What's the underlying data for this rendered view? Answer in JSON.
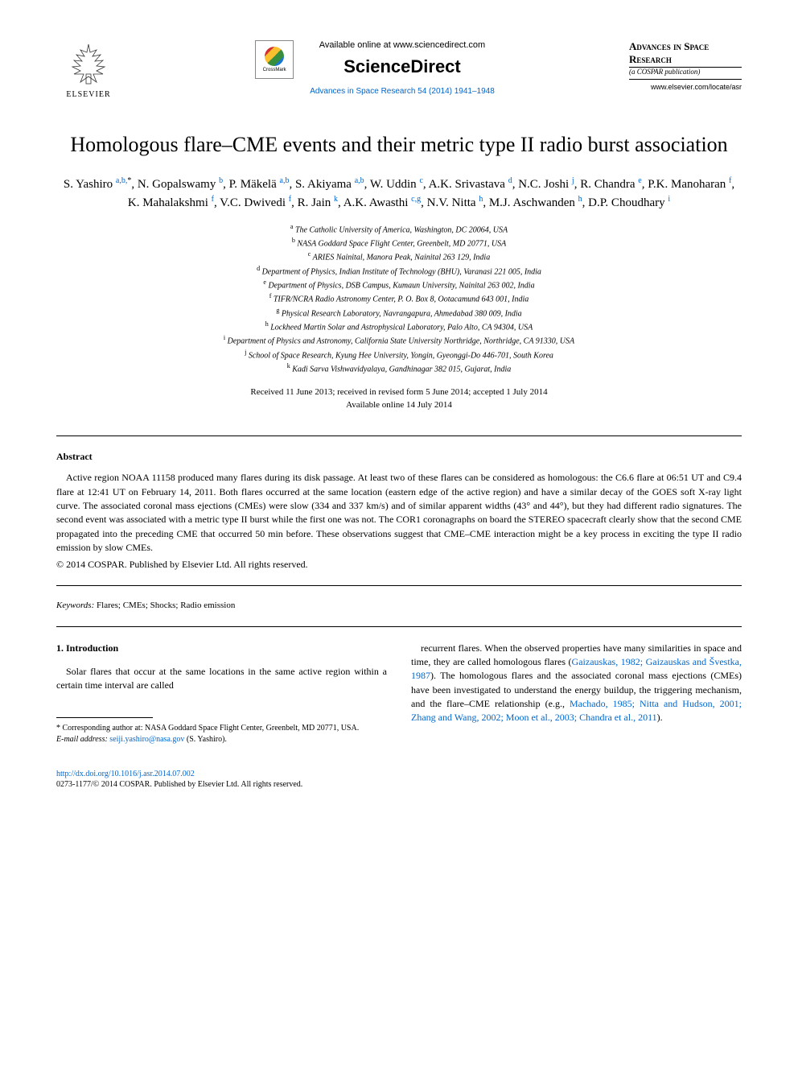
{
  "header": {
    "elsevier_label": "ELSEVIER",
    "crossmark_label": "CrossMark",
    "available_text": "Available online at www.sciencedirect.com",
    "sciencedirect": "ScienceDirect",
    "journal_ref": "Advances in Space Research 54 (2014) 1941–1948",
    "journal_title": "Advances in Space Research",
    "journal_sub": "(a COSPAR publication)",
    "journal_url": "www.elsevier.com/locate/asr"
  },
  "title": "Homologous flare–CME events and their metric type II radio burst association",
  "authors_html": "S. Yashiro <sup>a,b,</sup><sup class='ast'>*</sup>, N. Gopalswamy <sup>b</sup>, P. Mäkelä <sup>a,b</sup>, S. Akiyama <sup>a,b</sup>, W. Uddin <sup>c</sup>, A.K. Srivastava <sup>d</sup>, N.C. Joshi <sup>j</sup>, R. Chandra <sup>e</sup>, P.K. Manoharan <sup>f</sup>, K. Mahalakshmi <sup>f</sup>, V.C. Dwivedi <sup>f</sup>, R. Jain <sup>k</sup>, A.K. Awasthi <sup>c,g</sup>, N.V. Nitta <sup>h</sup>, M.J. Aschwanden <sup>h</sup>, D.P. Choudhary <sup>i</sup>",
  "affiliations": [
    {
      "sup": "a",
      "text": "The Catholic University of America, Washington, DC 20064, USA"
    },
    {
      "sup": "b",
      "text": "NASA Goddard Space Flight Center, Greenbelt, MD 20771, USA"
    },
    {
      "sup": "c",
      "text": "ARIES Nainital, Manora Peak, Nainital 263 129, India"
    },
    {
      "sup": "d",
      "text": "Department of Physics, Indian Institute of Technology (BHU), Varanasi 221 005, India"
    },
    {
      "sup": "e",
      "text": "Department of Physics, DSB Campus, Kumaun University, Nainital 263 002, India"
    },
    {
      "sup": "f",
      "text": "TIFR/NCRA Radio Astronomy Center, P. O. Box 8, Ootacamund 643 001, India"
    },
    {
      "sup": "g",
      "text": "Physical Research Laboratory, Navrangapura, Ahmedabad 380 009, India"
    },
    {
      "sup": "h",
      "text": "Lockheed Martin Solar and Astrophysical Laboratory, Palo Alto, CA 94304, USA"
    },
    {
      "sup": "i",
      "text": "Department of Physics and Astronomy, California State University Northridge, Northridge, CA 91330, USA"
    },
    {
      "sup": "j",
      "text": "School of Space Research, Kyung Hee University, Yongin, Gyeonggi-Do 446-701, South Korea"
    },
    {
      "sup": "k",
      "text": "Kadi Sarva Vishwavidyalaya, Gandhinagar 382 015, Gujarat, India"
    }
  ],
  "dates": {
    "received": "Received 11 June 2013; received in revised form 5 June 2014; accepted 1 July 2014",
    "online": "Available online 14 July 2014"
  },
  "abstract": {
    "heading": "Abstract",
    "text": "Active region NOAA 11158 produced many flares during its disk passage. At least two of these flares can be considered as homologous: the C6.6 flare at 06:51 UT and C9.4 flare at 12:41 UT on February 14, 2011. Both flares occurred at the same location (eastern edge of the active region) and have a similar decay of the GOES soft X-ray light curve. The associated coronal mass ejections (CMEs) were slow (334 and 337 km/s) and of similar apparent widths (43° and 44°), but they had different radio signatures. The second event was associated with a metric type II burst while the first one was not. The COR1 coronagraphs on board the STEREO spacecraft clearly show that the second CME propagated into the preceding CME that occurred 50 min before. These observations suggest that CME–CME interaction might be a key process in exciting the type II radio emission by slow CMEs.",
    "copyright": "© 2014 COSPAR. Published by Elsevier Ltd. All rights reserved."
  },
  "keywords": {
    "label": "Keywords:",
    "text": " Flares; CMEs; Shocks; Radio emission"
  },
  "intro": {
    "heading": "1. Introduction",
    "col1": "Solar flares that occur at the same locations in the same active region within a certain time interval are called",
    "col2_part1": "recurrent flares. When the observed properties have many similarities in space and time, they are called homologous flares (",
    "col2_ref1": "Gaizauskas, 1982; Gaizauskas and Švestka, 1987",
    "col2_part2": "). The homologous flares and the associated coronal mass ejections (CMEs) have been investigated to understand the energy buildup, the triggering mechanism, and the flare–CME relationship (e.g., ",
    "col2_ref2": "Machado, 1985; Nitta and Hudson, 2001; Zhang and Wang, 2002; Moon et al., 2003; Chandra et al., 2011",
    "col2_part3": ")."
  },
  "footnote": {
    "corresp": "* Corresponding author at: NASA Goddard Space Flight Center, Greenbelt, MD 20771, USA.",
    "email_label": "E-mail address:",
    "email": "seiji.yashiro@nasa.gov",
    "email_name": " (S. Yashiro)."
  },
  "doi": "http://dx.doi.org/10.1016/j.asr.2014.07.002",
  "bottom_copy": "0273-1177/© 2014 COSPAR. Published by Elsevier Ltd. All rights reserved.",
  "colors": {
    "link": "#0066cc",
    "text": "#000000",
    "bg": "#ffffff"
  }
}
